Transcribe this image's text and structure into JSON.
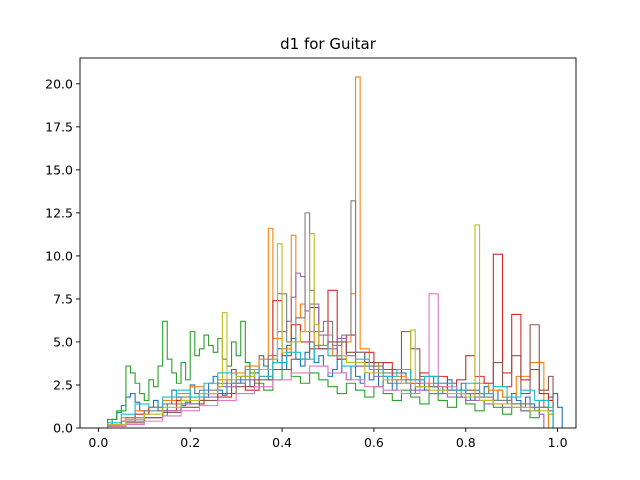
{
  "chart_data": {
    "type": "histogram-step",
    "title": "d1 for Guitar",
    "xlabel": "",
    "ylabel": "",
    "xlim": [
      -0.04,
      1.04
    ],
    "ylim": [
      0,
      21.5
    ],
    "x_ticks": [
      0.0,
      0.2,
      0.4,
      0.6,
      0.8,
      1.0
    ],
    "x_tick_labels": [
      "0.0",
      "0.2",
      "0.4",
      "0.6",
      "0.8",
      "1.0"
    ],
    "y_ticks": [
      0.0,
      2.5,
      5.0,
      7.5,
      10.0,
      12.5,
      15.0,
      17.5,
      20.0
    ],
    "y_tick_labels": [
      "0.0",
      "2.5",
      "5.0",
      "7.5",
      "10.0",
      "12.5",
      "15.0",
      "17.5",
      "20.0"
    ],
    "grid": false,
    "legend": "none",
    "series_colors": [
      "#1f77b4",
      "#ff7f0e",
      "#2ca02c",
      "#d62728",
      "#9467bd",
      "#8c564b",
      "#e377c2",
      "#7f7f7f",
      "#bcbd22",
      "#17becf"
    ],
    "series": [
      {
        "x": [
          0.02,
          0.03,
          0.04,
          0.05,
          0.06,
          0.07,
          0.08,
          0.09,
          0.1,
          0.11,
          0.12,
          0.13,
          0.14,
          0.15,
          0.16,
          0.17,
          0.18,
          0.19,
          0.2,
          0.21,
          0.22,
          0.23,
          0.24,
          0.25,
          0.26,
          0.27,
          0.28,
          0.29,
          0.3,
          0.31,
          0.32,
          0.33,
          0.34,
          0.35,
          0.36,
          0.37,
          0.38,
          0.39,
          0.4,
          0.41,
          0.42,
          0.43,
          0.44,
          0.45,
          0.46,
          0.47,
          0.48,
          0.49,
          0.5,
          0.51,
          0.52,
          0.53,
          0.54,
          0.55,
          0.56,
          0.57,
          0.58,
          0.59,
          0.6,
          0.61,
          0.62,
          0.63,
          0.64,
          0.65,
          0.66,
          0.67,
          0.68,
          0.69,
          0.7,
          0.71,
          0.72,
          0.73,
          0.74,
          0.75,
          0.76,
          0.77,
          0.78,
          0.79,
          0.8,
          0.81,
          0.82,
          0.83,
          0.84,
          0.85,
          0.86,
          0.87,
          0.88,
          0.89,
          0.9,
          0.91,
          0.92,
          0.93,
          0.94,
          0.95,
          0.96,
          0.97,
          0.98,
          0.99,
          1.0
        ],
        "y": [
          0.2,
          0.5,
          0.9,
          1.3,
          1.8,
          2.0,
          1.5,
          1.0,
          0.8,
          1.2,
          1.6,
          1.0,
          0.7,
          1.4,
          2.2,
          1.8,
          1.3,
          1.5,
          2.5,
          2.0,
          1.6,
          1.8,
          2.6,
          3.0,
          2.2,
          1.9,
          2.8,
          3.4,
          2.6,
          3.0,
          3.6,
          2.4,
          3.2,
          4.2,
          3.6,
          2.8,
          3.8,
          4.6,
          3.4,
          4.8,
          5.2,
          4.0,
          3.6,
          4.4,
          5.0,
          3.8,
          4.2,
          3.6,
          3.0,
          3.4,
          4.0,
          3.2,
          2.8,
          3.6,
          3.0,
          2.6,
          3.2,
          2.8,
          3.6,
          2.4,
          3.0,
          2.6,
          2.2,
          2.8,
          3.2,
          2.6,
          2.0,
          2.4,
          2.8,
          2.2,
          3.0,
          2.6,
          2.0,
          2.4,
          2.8,
          2.2,
          1.8,
          2.6,
          2.0,
          1.6,
          2.2,
          1.8,
          2.4,
          2.0,
          1.6,
          2.2,
          1.8,
          1.4,
          2.0,
          1.6,
          1.2,
          1.8,
          1.4,
          1.0,
          1.6,
          1.2,
          1.8,
          2.0,
          1.2
        ]
      },
      {
        "x": [
          0.02,
          0.05,
          0.08,
          0.11,
          0.14,
          0.17,
          0.2,
          0.23,
          0.26,
          0.29,
          0.32,
          0.35,
          0.37,
          0.38,
          0.4,
          0.42,
          0.43,
          0.44,
          0.45,
          0.47,
          0.49,
          0.51,
          0.53,
          0.55,
          0.56,
          0.57,
          0.59,
          0.61,
          0.64,
          0.67,
          0.7,
          0.73,
          0.76,
          0.79,
          0.82,
          0.85,
          0.88,
          0.91,
          0.94,
          0.97
        ],
        "y": [
          0.2,
          0.6,
          1.0,
          1.2,
          1.6,
          2.0,
          2.4,
          2.0,
          2.8,
          3.2,
          3.6,
          4.0,
          11.6,
          5.2,
          4.6,
          11.2,
          6.4,
          7.2,
          5.6,
          4.8,
          5.4,
          4.2,
          5.0,
          7.8,
          20.4,
          4.6,
          3.8,
          3.4,
          3.0,
          2.8,
          2.6,
          2.4,
          2.2,
          2.0,
          2.6,
          2.2,
          1.8,
          3.0,
          3.8,
          1.2
        ]
      },
      {
        "x": [
          0.02,
          0.04,
          0.06,
          0.07,
          0.08,
          0.09,
          0.1,
          0.11,
          0.12,
          0.13,
          0.14,
          0.15,
          0.16,
          0.17,
          0.18,
          0.19,
          0.2,
          0.21,
          0.22,
          0.23,
          0.24,
          0.25,
          0.26,
          0.27,
          0.28,
          0.29,
          0.3,
          0.31,
          0.32,
          0.33,
          0.34,
          0.36,
          0.38,
          0.4,
          0.42,
          0.44,
          0.46,
          0.48,
          0.5,
          0.52,
          0.54,
          0.56,
          0.58,
          0.6,
          0.62,
          0.64,
          0.66,
          0.68,
          0.7,
          0.72,
          0.74,
          0.76,
          0.78,
          0.8,
          0.82,
          0.84,
          0.86,
          0.88,
          0.9,
          0.92,
          0.94,
          0.96,
          0.98
        ],
        "y": [
          0.5,
          1.0,
          3.6,
          3.2,
          2.6,
          2.0,
          1.6,
          2.8,
          2.4,
          3.6,
          6.2,
          4.0,
          3.2,
          2.6,
          3.8,
          2.8,
          5.6,
          4.2,
          4.6,
          5.4,
          4.8,
          4.4,
          5.2,
          4.0,
          3.6,
          5.0,
          4.2,
          6.2,
          3.8,
          3.2,
          2.6,
          2.2,
          2.8,
          3.4,
          3.0,
          2.6,
          3.2,
          2.8,
          2.4,
          2.0,
          2.6,
          2.2,
          1.8,
          2.4,
          2.0,
          1.6,
          2.2,
          1.8,
          1.4,
          2.0,
          1.6,
          1.2,
          1.8,
          1.4,
          1.0,
          1.6,
          1.2,
          0.8,
          1.4,
          1.0,
          0.6,
          1.2,
          0.8
        ]
      },
      {
        "x": [
          0.02,
          0.05,
          0.08,
          0.11,
          0.14,
          0.17,
          0.2,
          0.23,
          0.26,
          0.29,
          0.32,
          0.35,
          0.38,
          0.4,
          0.42,
          0.44,
          0.46,
          0.48,
          0.5,
          0.52,
          0.54,
          0.56,
          0.58,
          0.6,
          0.62,
          0.64,
          0.66,
          0.68,
          0.7,
          0.72,
          0.74,
          0.76,
          0.78,
          0.8,
          0.82,
          0.84,
          0.86,
          0.88,
          0.9,
          0.92,
          0.94,
          0.96,
          0.98
        ],
        "y": [
          0.2,
          0.4,
          0.8,
          1.2,
          1.0,
          1.6,
          1.4,
          2.0,
          1.8,
          2.6,
          2.2,
          3.0,
          7.4,
          4.2,
          6.0,
          5.0,
          7.0,
          4.6,
          8.0,
          4.0,
          5.4,
          3.6,
          4.4,
          3.2,
          3.8,
          2.8,
          3.4,
          2.6,
          3.2,
          2.4,
          3.0,
          2.2,
          2.8,
          4.2,
          3.0,
          2.6,
          10.1,
          3.2,
          6.6,
          2.8,
          3.4,
          2.0,
          1.6
        ]
      },
      {
        "x": [
          0.02,
          0.06,
          0.1,
          0.14,
          0.18,
          0.22,
          0.26,
          0.3,
          0.34,
          0.37,
          0.39,
          0.41,
          0.42,
          0.43,
          0.44,
          0.45,
          0.46,
          0.48,
          0.5,
          0.52,
          0.54,
          0.56,
          0.6,
          0.64,
          0.68,
          0.72,
          0.76,
          0.8,
          0.84,
          0.88,
          0.92,
          0.96
        ],
        "y": [
          0.1,
          0.4,
          0.6,
          1.0,
          1.4,
          1.8,
          2.4,
          2.8,
          3.4,
          4.0,
          5.6,
          6.2,
          7.6,
          9.0,
          8.8,
          6.8,
          7.2,
          5.4,
          4.6,
          5.2,
          4.2,
          3.6,
          3.0,
          2.6,
          2.2,
          2.0,
          1.8,
          1.6,
          1.4,
          1.2,
          1.0,
          0.8
        ]
      },
      {
        "x": [
          0.02,
          0.06,
          0.1,
          0.14,
          0.18,
          0.22,
          0.26,
          0.3,
          0.34,
          0.38,
          0.42,
          0.46,
          0.5,
          0.54,
          0.58,
          0.62,
          0.66,
          0.68,
          0.7,
          0.74,
          0.78,
          0.82,
          0.86,
          0.88,
          0.9,
          0.92,
          0.94,
          0.96,
          0.98
        ],
        "y": [
          0.1,
          0.3,
          0.6,
          0.9,
          1.2,
          1.6,
          2.0,
          2.4,
          2.8,
          3.4,
          4.0,
          4.6,
          5.0,
          4.4,
          3.8,
          3.4,
          5.6,
          4.6,
          3.0,
          2.6,
          2.2,
          2.0,
          3.8,
          2.4,
          4.2,
          2.0,
          6.0,
          2.2,
          3.0
        ]
      },
      {
        "x": [
          0.02,
          0.06,
          0.1,
          0.14,
          0.18,
          0.22,
          0.26,
          0.3,
          0.34,
          0.38,
          0.42,
          0.46,
          0.5,
          0.54,
          0.58,
          0.62,
          0.66,
          0.7,
          0.72,
          0.74,
          0.78,
          0.82,
          0.86,
          0.9,
          0.94,
          0.98
        ],
        "y": [
          0.1,
          0.2,
          0.4,
          0.7,
          1.0,
          1.3,
          1.6,
          2.0,
          2.4,
          2.8,
          3.2,
          3.6,
          3.2,
          2.8,
          2.4,
          2.2,
          2.0,
          2.6,
          7.8,
          2.4,
          2.0,
          1.8,
          1.6,
          1.4,
          1.2,
          1.0
        ]
      },
      {
        "x": [
          0.02,
          0.06,
          0.1,
          0.14,
          0.18,
          0.22,
          0.26,
          0.3,
          0.34,
          0.37,
          0.39,
          0.41,
          0.43,
          0.45,
          0.46,
          0.47,
          0.49,
          0.51,
          0.53,
          0.55,
          0.56,
          0.58,
          0.62,
          0.66,
          0.7,
          0.74,
          0.78,
          0.82,
          0.86,
          0.9,
          0.94,
          0.98
        ],
        "y": [
          0.2,
          0.6,
          1.0,
          1.4,
          1.8,
          2.2,
          2.6,
          3.0,
          3.4,
          4.2,
          7.8,
          5.0,
          6.4,
          12.5,
          8.0,
          5.6,
          6.2,
          4.8,
          5.4,
          13.2,
          4.4,
          3.6,
          3.2,
          2.8,
          2.4,
          2.2,
          2.0,
          1.8,
          1.6,
          1.4,
          1.2,
          1.0
        ]
      },
      {
        "x": [
          0.02,
          0.06,
          0.1,
          0.14,
          0.18,
          0.22,
          0.26,
          0.27,
          0.28,
          0.3,
          0.34,
          0.38,
          0.39,
          0.4,
          0.42,
          0.44,
          0.46,
          0.47,
          0.48,
          0.5,
          0.54,
          0.58,
          0.62,
          0.66,
          0.68,
          0.69,
          0.72,
          0.76,
          0.8,
          0.82,
          0.83,
          0.86,
          0.9,
          0.94,
          0.98
        ],
        "y": [
          0.2,
          0.5,
          0.8,
          1.2,
          1.6,
          2.0,
          2.4,
          6.7,
          2.8,
          3.0,
          3.4,
          4.0,
          10.7,
          4.4,
          5.0,
          5.6,
          11.3,
          6.0,
          4.8,
          4.2,
          3.8,
          3.2,
          2.8,
          2.6,
          5.7,
          2.4,
          2.2,
          2.0,
          1.8,
          11.8,
          1.6,
          1.4,
          1.2,
          1.0,
          0.8
        ]
      },
      {
        "x": [
          0.02,
          0.05,
          0.08,
          0.11,
          0.14,
          0.17,
          0.2,
          0.23,
          0.26,
          0.29,
          0.32,
          0.35,
          0.38,
          0.41,
          0.44,
          0.47,
          0.5,
          0.53,
          0.56,
          0.59,
          0.62,
          0.65,
          0.68,
          0.71,
          0.74,
          0.77,
          0.8,
          0.83,
          0.86,
          0.89,
          0.92,
          0.95,
          0.98
        ],
        "y": [
          0.3,
          0.8,
          1.4,
          1.2,
          1.8,
          2.2,
          1.8,
          2.6,
          3.2,
          2.6,
          3.4,
          3.0,
          3.8,
          4.4,
          4.0,
          4.8,
          4.2,
          3.6,
          4.0,
          3.4,
          3.0,
          3.4,
          2.8,
          3.0,
          2.6,
          2.2,
          2.6,
          2.0,
          2.4,
          1.8,
          2.2,
          1.6,
          1.2
        ]
      }
    ]
  }
}
